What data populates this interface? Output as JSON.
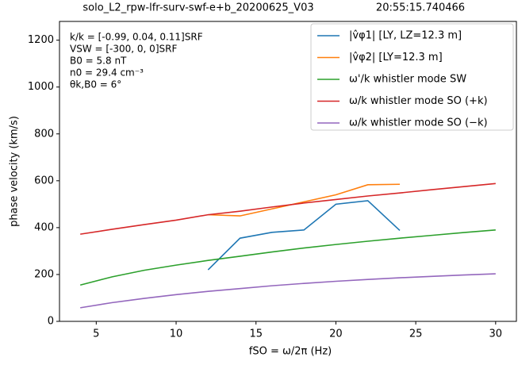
{
  "chart_data": {
    "type": "line",
    "title": "solo_L2_rpw-lfr-surv-swf-e+b_20200625_V03",
    "title_right": "20:55:15.740466",
    "xlabel": "fSO = ω/2π  (Hz)",
    "ylabel": "phase velocity (km/s)",
    "annotations": [
      "k/k = [-0.99, 0.04, 0.11]SRF",
      "VSW = [-300, 0, 0]SRF",
      "B0 = 5.8 nT",
      "n0 = 29.4 cm⁻³",
      "θk,B0 = 6°"
    ],
    "x": [
      4,
      6,
      8,
      10,
      12,
      14,
      16,
      18,
      20,
      22,
      24,
      26,
      28,
      30
    ],
    "series": [
      {
        "name": "|v̂φ1|   [LY, LZ=12.3 m]",
        "color": "#1f77b4",
        "values": [
          null,
          null,
          null,
          null,
          220,
          355,
          380,
          390,
          500,
          515,
          388,
          null,
          null,
          null
        ]
      },
      {
        "name": "|v̂φ2|   [LY=12.3 m]",
        "color": "#ff7f0e",
        "values": [
          null,
          null,
          null,
          null,
          455,
          450,
          480,
          510,
          540,
          583,
          585,
          null,
          null,
          null
        ]
      },
      {
        "name": "ω'/k whistler mode SW",
        "color": "#2ca02c",
        "values": [
          155,
          190,
          218,
          240,
          260,
          278,
          296,
          313,
          328,
          342,
          355,
          367,
          379,
          390
        ]
      },
      {
        "name": "ω/k whistler mode SO (+k)",
        "color": "#d62728",
        "values": [
          372,
          393,
          413,
          432,
          455,
          470,
          488,
          505,
          520,
          535,
          548,
          562,
          575,
          588
        ]
      },
      {
        "name": "ω/k whistler mode SO (−k)",
        "color": "#9467bd",
        "values": [
          58,
          80,
          98,
          114,
          128,
          140,
          152,
          162,
          171,
          179,
          186,
          192,
          198,
          203
        ]
      }
    ],
    "xlim": [
      2.7,
      31.3
    ],
    "xticks": [
      5,
      10,
      15,
      20,
      25,
      30
    ],
    "ylim": [
      0,
      1280
    ],
    "yticks": [
      0,
      200,
      400,
      600,
      800,
      1000,
      1200
    ],
    "legend": "upper right"
  }
}
